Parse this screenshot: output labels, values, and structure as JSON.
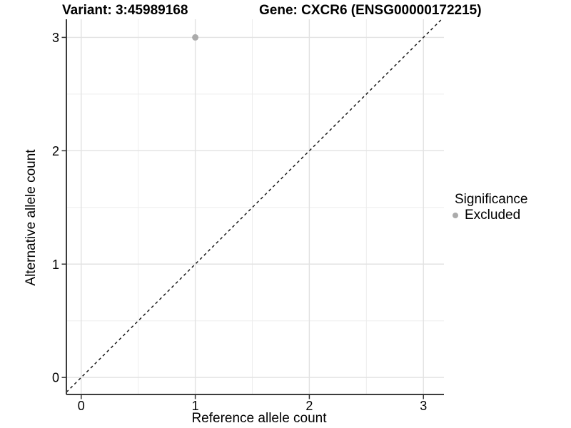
{
  "header": {
    "variant_title": "Variant: 3:45989168",
    "gene_title": "Gene: CXCR6 (ENSG00000172215)"
  },
  "chart_data": {
    "type": "scatter",
    "title": "Variant: 3:45989168",
    "subtitle": "Gene: CXCR6 (ENSG00000172215)",
    "xlabel": "Reference allele count",
    "ylabel": "Alternative allele count",
    "xlim": [
      -0.13,
      3.18
    ],
    "ylim": [
      -0.15,
      3.16
    ],
    "x_ticks": [
      0,
      1,
      2,
      3
    ],
    "y_ticks": [
      0,
      1,
      2,
      3
    ],
    "x_minor_ticks": [
      0.5,
      1.5,
      2.5
    ],
    "y_minor_ticks": [
      0.5,
      1.5,
      2.5
    ],
    "grid": true,
    "legend_position": "right",
    "series": [
      {
        "name": "Excluded",
        "color": "#ABABAB",
        "point_radius": 4.5,
        "points": [
          {
            "x": 1,
            "y": 3
          }
        ]
      }
    ],
    "reference_line": {
      "kind": "identity",
      "equation": "y = x",
      "style": "dashed",
      "color": "#1A1A1A"
    }
  },
  "legend": {
    "title": "Significance",
    "items": [
      {
        "label": "Excluded",
        "color": "#ABABAB"
      }
    ]
  },
  "colors": {
    "background": "#FFFFFF",
    "grid_major": "#E2E2E2",
    "grid_minor": "#EDEDED",
    "axis_line": "#3C3C3C",
    "tick_mark": "#333333",
    "tick_label": "#000000",
    "text": "#000000"
  }
}
